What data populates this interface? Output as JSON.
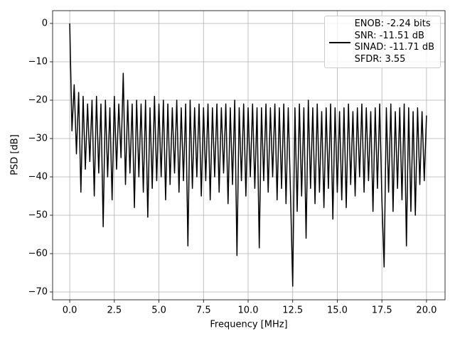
{
  "chart_data": {
    "type": "line",
    "xlabel": "Frequency [MHz]",
    "ylabel": "PSD [dB]",
    "x": [
      0,
      0.125,
      0.25,
      0.375,
      0.5,
      0.625,
      0.75,
      0.875,
      1,
      1.125,
      1.25,
      1.375,
      1.5,
      1.625,
      1.75,
      1.875,
      2,
      2.125,
      2.25,
      2.375,
      2.5,
      2.625,
      2.75,
      2.875,
      3,
      3.125,
      3.25,
      3.375,
      3.5,
      3.625,
      3.75,
      3.875,
      4,
      4.125,
      4.25,
      4.375,
      4.5,
      4.625,
      4.75,
      4.875,
      5,
      5.125,
      5.25,
      5.375,
      5.5,
      5.625,
      5.75,
      5.875,
      6,
      6.125,
      6.25,
      6.375,
      6.5,
      6.625,
      6.75,
      6.875,
      7,
      7.125,
      7.25,
      7.375,
      7.5,
      7.625,
      7.75,
      7.875,
      8,
      8.125,
      8.25,
      8.375,
      8.5,
      8.625,
      8.75,
      8.875,
      9,
      9.125,
      9.25,
      9.375,
      9.5,
      9.625,
      9.75,
      9.875,
      10,
      10.125,
      10.25,
      10.375,
      10.5,
      10.625,
      10.75,
      10.875,
      11,
      11.125,
      11.25,
      11.375,
      11.5,
      11.625,
      11.75,
      11.875,
      12,
      12.125,
      12.25,
      12.375,
      12.5,
      12.625,
      12.75,
      12.875,
      13,
      13.125,
      13.25,
      13.375,
      13.5,
      13.625,
      13.75,
      13.875,
      14,
      14.125,
      14.25,
      14.375,
      14.5,
      14.625,
      14.75,
      14.875,
      15,
      15.125,
      15.25,
      15.375,
      15.5,
      15.625,
      15.75,
      15.875,
      16,
      16.125,
      16.25,
      16.375,
      16.5,
      16.625,
      16.75,
      16.875,
      17,
      17.125,
      17.25,
      17.375,
      17.5,
      17.625,
      17.75,
      17.875,
      18,
      18.125,
      18.25,
      18.375,
      18.5,
      18.625,
      18.75,
      18.875,
      19,
      19.125,
      19.25,
      19.375,
      19.5,
      19.625,
      19.75,
      19.875,
      20
    ],
    "series": [
      {
        "name": "ENOB: -2.24 bits\nSNR: -11.51 dB\nSINAD: -11.71 dB\nSFDR: 3.55",
        "color": "#000000",
        "values": [
          0,
          -28,
          -16,
          -34,
          -18,
          -44,
          -19,
          -38,
          -21,
          -36,
          -20,
          -45,
          -19,
          -39,
          -21,
          -53,
          -20,
          -40,
          -22,
          -46,
          -19,
          -38,
          -21,
          -35,
          -13,
          -42,
          -20,
          -39,
          -21,
          -48,
          -20,
          -40,
          -21,
          -44,
          -20,
          -50.5,
          -22,
          -43,
          -19,
          -41,
          -21,
          -40,
          -20,
          -46,
          -21,
          -42,
          -22,
          -39,
          -20,
          -44,
          -22,
          -41,
          -21,
          -58,
          -20,
          -43,
          -22,
          -40,
          -21,
          -45,
          -22,
          -41,
          -21,
          -46,
          -22,
          -40,
          -21,
          -44,
          -22,
          -39,
          -21,
          -47,
          -22,
          -42,
          -20,
          -60.5,
          -22,
          -41,
          -21,
          -45,
          -22,
          -40,
          -21,
          -43,
          -22,
          -58.5,
          -22,
          -41,
          -21,
          -44,
          -22,
          -40,
          -21,
          -46,
          -22,
          -43,
          -21,
          -47,
          -22,
          -44,
          -68.5,
          -22,
          -49,
          -21,
          -45,
          -22,
          -56,
          -20,
          -43,
          -22,
          -47,
          -21,
          -44,
          -23,
          -48,
          -22,
          -43,
          -21,
          -51,
          -22,
          -44,
          -23,
          -46,
          -22,
          -48,
          -21,
          -42,
          -23,
          -45,
          -22,
          -40,
          -21,
          -44,
          -22,
          -41,
          -23,
          -49,
          -22,
          -43,
          -21,
          -46,
          -63.5,
          -22,
          -44,
          -21,
          -49,
          -23,
          -43,
          -22,
          -46,
          -21,
          -58,
          -22,
          -49,
          -23,
          -50,
          -22,
          -42,
          -23,
          -41,
          -24
        ]
      }
    ],
    "xlim": [
      -0.96,
      21.04
    ],
    "ylim": [
      -72.04,
      3.33
    ],
    "xticks": [
      {
        "value": 0,
        "label": "0.0"
      },
      {
        "value": 2.5,
        "label": "2.5"
      },
      {
        "value": 5,
        "label": "5.0"
      },
      {
        "value": 7.5,
        "label": "7.5"
      },
      {
        "value": 10,
        "label": "10.0"
      },
      {
        "value": 12.5,
        "label": "12.5"
      },
      {
        "value": 15,
        "label": "15.0"
      },
      {
        "value": 17.5,
        "label": "17.5"
      },
      {
        "value": 20,
        "label": "20.0"
      }
    ],
    "yticks": [
      0,
      {
        "value": -10,
        "label": "−10"
      },
      {
        "value": -20,
        "label": "−20"
      },
      {
        "value": -30,
        "label": "−30"
      },
      {
        "value": -40,
        "label": "−40"
      },
      {
        "value": -50,
        "label": "−50"
      },
      {
        "value": -60,
        "label": "−60"
      },
      {
        "value": -70,
        "label": "−70"
      }
    ],
    "grid": true,
    "legend": "upper right"
  }
}
